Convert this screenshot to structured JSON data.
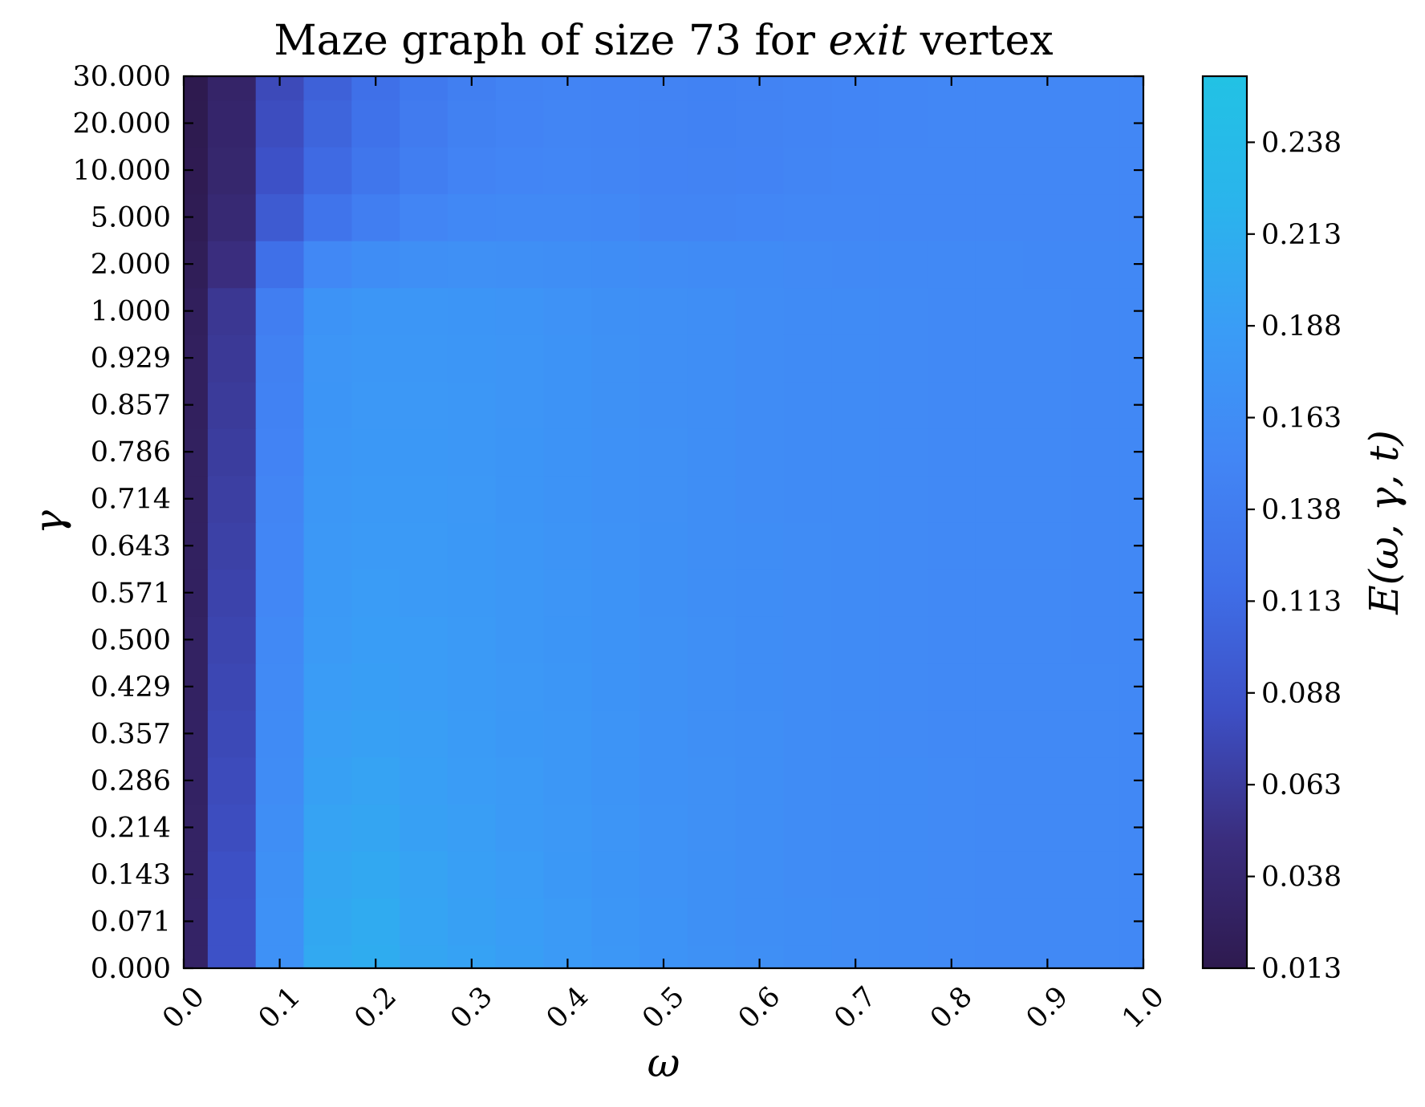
{
  "chart_data": {
    "type": "heatmap",
    "title": {
      "prefix": "Maze graph of size 73 for ",
      "italic": "exit",
      "suffix": " vertex"
    },
    "xlabel": "ω",
    "ylabel": "γ",
    "colorbar_label": "E(ω, γ, t)",
    "x_ticks": [
      "0.0",
      "0.1",
      "0.2",
      "0.3",
      "0.4",
      "0.5",
      "0.6",
      "0.7",
      "0.8",
      "0.9",
      "1.0"
    ],
    "y_ticks": [
      "0.000",
      "0.071",
      "0.143",
      "0.214",
      "0.286",
      "0.357",
      "0.429",
      "0.500",
      "0.571",
      "0.643",
      "0.714",
      "0.786",
      "0.857",
      "0.929",
      "1.000",
      "2.000",
      "5.000",
      "10.000",
      "20.000",
      "30.000"
    ],
    "colorbar_ticks": [
      "0.013",
      "0.038",
      "0.063",
      "0.088",
      "0.113",
      "0.138",
      "0.163",
      "0.188",
      "0.213",
      "0.238"
    ],
    "xlim": [
      0,
      1
    ],
    "color_range": [
      0.013,
      0.256
    ],
    "colormap": [
      "#2e1a4f",
      "#3a2d7d",
      "#3d4fc4",
      "#3f6fe8",
      "#4286f5",
      "#3a9cf6",
      "#2ab4ec",
      "#22c2e4"
    ],
    "values": [
      [
        0.03,
        0.085,
        0.17,
        0.205,
        0.21,
        0.2,
        0.195,
        0.19,
        0.184,
        0.178,
        0.173,
        0.169,
        0.166,
        0.163,
        0.161,
        0.159,
        0.158,
        0.157,
        0.156,
        0.156,
        0.155
      ],
      [
        0.03,
        0.085,
        0.17,
        0.203,
        0.208,
        0.198,
        0.193,
        0.188,
        0.183,
        0.177,
        0.172,
        0.168,
        0.165,
        0.163,
        0.161,
        0.159,
        0.158,
        0.157,
        0.156,
        0.156,
        0.155
      ],
      [
        0.029,
        0.083,
        0.168,
        0.2,
        0.204,
        0.196,
        0.191,
        0.186,
        0.181,
        0.176,
        0.171,
        0.168,
        0.165,
        0.162,
        0.16,
        0.159,
        0.158,
        0.157,
        0.156,
        0.156,
        0.155
      ],
      [
        0.029,
        0.08,
        0.165,
        0.196,
        0.2,
        0.193,
        0.189,
        0.184,
        0.18,
        0.175,
        0.171,
        0.167,
        0.164,
        0.162,
        0.16,
        0.159,
        0.158,
        0.157,
        0.156,
        0.156,
        0.155
      ],
      [
        0.028,
        0.078,
        0.162,
        0.192,
        0.196,
        0.191,
        0.187,
        0.183,
        0.179,
        0.174,
        0.17,
        0.167,
        0.164,
        0.162,
        0.16,
        0.159,
        0.158,
        0.157,
        0.156,
        0.156,
        0.155
      ],
      [
        0.028,
        0.076,
        0.16,
        0.189,
        0.193,
        0.189,
        0.185,
        0.181,
        0.178,
        0.174,
        0.17,
        0.166,
        0.164,
        0.161,
        0.16,
        0.158,
        0.157,
        0.157,
        0.156,
        0.156,
        0.155
      ],
      [
        0.027,
        0.074,
        0.158,
        0.186,
        0.19,
        0.187,
        0.184,
        0.18,
        0.177,
        0.173,
        0.169,
        0.166,
        0.163,
        0.161,
        0.16,
        0.158,
        0.157,
        0.157,
        0.156,
        0.156,
        0.155
      ],
      [
        0.027,
        0.072,
        0.156,
        0.184,
        0.188,
        0.186,
        0.183,
        0.179,
        0.176,
        0.172,
        0.169,
        0.166,
        0.163,
        0.161,
        0.159,
        0.158,
        0.157,
        0.156,
        0.156,
        0.155,
        0.155
      ],
      [
        0.026,
        0.07,
        0.154,
        0.182,
        0.186,
        0.184,
        0.182,
        0.178,
        0.175,
        0.172,
        0.168,
        0.165,
        0.163,
        0.161,
        0.159,
        0.158,
        0.157,
        0.156,
        0.156,
        0.155,
        0.155
      ],
      [
        0.026,
        0.068,
        0.152,
        0.18,
        0.184,
        0.183,
        0.181,
        0.177,
        0.174,
        0.171,
        0.168,
        0.165,
        0.163,
        0.161,
        0.159,
        0.158,
        0.157,
        0.156,
        0.156,
        0.155,
        0.155
      ],
      [
        0.025,
        0.066,
        0.15,
        0.178,
        0.182,
        0.182,
        0.18,
        0.176,
        0.173,
        0.17,
        0.167,
        0.165,
        0.162,
        0.16,
        0.159,
        0.158,
        0.157,
        0.156,
        0.156,
        0.155,
        0.155
      ],
      [
        0.025,
        0.064,
        0.148,
        0.177,
        0.181,
        0.181,
        0.179,
        0.176,
        0.173,
        0.17,
        0.167,
        0.164,
        0.162,
        0.16,
        0.159,
        0.158,
        0.157,
        0.156,
        0.156,
        0.155,
        0.155
      ],
      [
        0.024,
        0.062,
        0.146,
        0.176,
        0.18,
        0.18,
        0.178,
        0.175,
        0.172,
        0.169,
        0.166,
        0.164,
        0.162,
        0.16,
        0.159,
        0.158,
        0.157,
        0.156,
        0.156,
        0.155,
        0.155
      ],
      [
        0.024,
        0.06,
        0.144,
        0.175,
        0.179,
        0.179,
        0.177,
        0.175,
        0.172,
        0.169,
        0.166,
        0.164,
        0.162,
        0.16,
        0.159,
        0.158,
        0.157,
        0.156,
        0.156,
        0.155,
        0.155
      ],
      [
        0.023,
        0.058,
        0.14,
        0.172,
        0.177,
        0.177,
        0.176,
        0.174,
        0.171,
        0.168,
        0.166,
        0.164,
        0.162,
        0.16,
        0.159,
        0.158,
        0.157,
        0.156,
        0.156,
        0.155,
        0.155
      ],
      [
        0.02,
        0.048,
        0.118,
        0.155,
        0.163,
        0.166,
        0.167,
        0.166,
        0.165,
        0.163,
        0.161,
        0.16,
        0.159,
        0.158,
        0.157,
        0.157,
        0.156,
        0.156,
        0.155,
        0.155,
        0.155
      ],
      [
        0.017,
        0.04,
        0.095,
        0.125,
        0.14,
        0.15,
        0.155,
        0.157,
        0.157,
        0.155,
        0.15,
        0.15,
        0.152,
        0.153,
        0.154,
        0.154,
        0.154,
        0.154,
        0.154,
        0.154,
        0.154
      ],
      [
        0.015,
        0.036,
        0.085,
        0.112,
        0.128,
        0.14,
        0.148,
        0.151,
        0.152,
        0.15,
        0.148,
        0.147,
        0.148,
        0.15,
        0.152,
        0.153,
        0.153,
        0.153,
        0.154,
        0.154,
        0.154
      ],
      [
        0.014,
        0.034,
        0.08,
        0.106,
        0.122,
        0.135,
        0.144,
        0.148,
        0.15,
        0.149,
        0.147,
        0.146,
        0.147,
        0.149,
        0.151,
        0.152,
        0.153,
        0.153,
        0.153,
        0.154,
        0.154
      ],
      [
        0.013,
        0.032,
        0.077,
        0.102,
        0.118,
        0.132,
        0.142,
        0.147,
        0.149,
        0.148,
        0.147,
        0.146,
        0.147,
        0.149,
        0.151,
        0.152,
        0.153,
        0.153,
        0.153,
        0.154,
        0.154
      ]
    ]
  }
}
